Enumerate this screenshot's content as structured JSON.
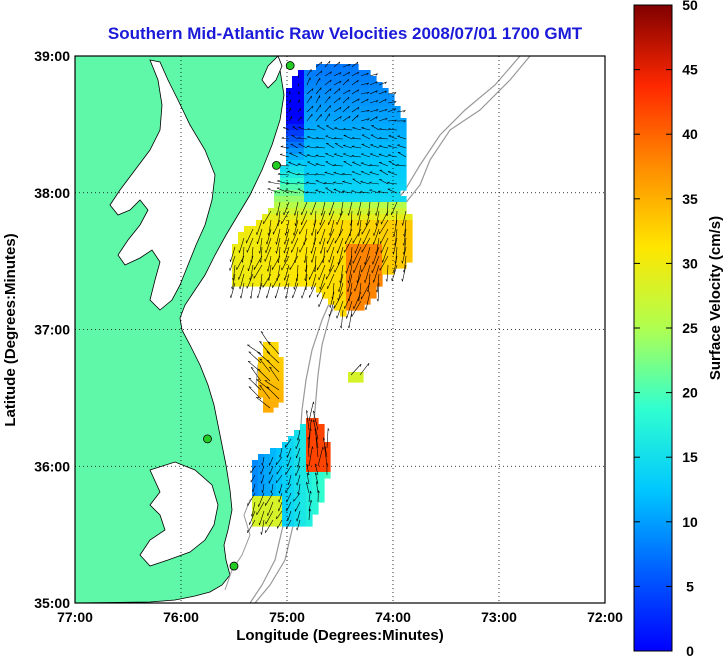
{
  "title": "Southern Mid-Atlantic Raw Velocities 2008/07/01 1700 GMT",
  "xlabel": "Longitude (Degrees:Minutes)",
  "ylabel": "Latitude (Degrees:Minutes)",
  "x_ticks": [
    "77:00",
    "76:00",
    "75:00",
    "74:00",
    "73:00",
    "72:00"
  ],
  "y_ticks": [
    "39:00",
    "38:00",
    "37:00",
    "36:00",
    "35:00"
  ],
  "colorbar": {
    "label": "Surface Velocity (cm/s)",
    "ticks": [
      "0",
      "5",
      "10",
      "15",
      "20",
      "25",
      "30",
      "35",
      "40",
      "45",
      "50"
    ],
    "min": 0,
    "max": 50
  },
  "colors": {
    "land": "#5ff7a8",
    "station": "#22cc22",
    "bathymetry": "#999999",
    "title": "#1a1ad8"
  },
  "stations_lonlat": [
    [
      -74.97,
      38.93
    ],
    [
      -75.1,
      38.2
    ],
    [
      -75.75,
      36.2
    ],
    [
      -75.5,
      35.27
    ]
  ]
}
